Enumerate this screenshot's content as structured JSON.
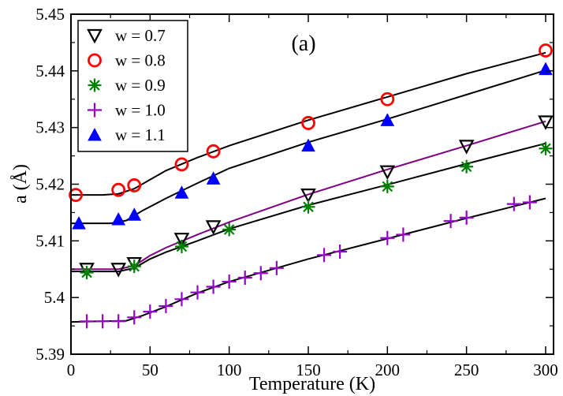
{
  "chart_data": {
    "type": "scatter",
    "xlabel": "Temperature (K)",
    "ylabel": "a (Å)",
    "xlim": [
      0,
      305
    ],
    "ylim": [
      5.39,
      5.45
    ],
    "xticks": [
      "0",
      "50",
      "100",
      "150",
      "200",
      "250",
      "300"
    ],
    "yticks": [
      "5.39",
      "5.4",
      "5.41",
      "5.42",
      "5.43",
      "5.44",
      "5.45"
    ],
    "annotation": "(a)",
    "legend_position": "top-left",
    "grid": false,
    "series": [
      {
        "name": "w = 0.7",
        "marker": "triangle-down",
        "color": "#000000",
        "filled": false,
        "points": [
          [
            10,
            5.405
          ],
          [
            30,
            5.405
          ],
          [
            40,
            5.406
          ],
          [
            70,
            5.4103
          ],
          [
            90,
            5.4125
          ],
          [
            150,
            5.4181
          ],
          [
            200,
            5.4222
          ],
          [
            250,
            5.4267
          ],
          [
            300,
            5.431
          ]
        ]
      },
      {
        "name": "w = 0.8",
        "marker": "circle",
        "color": "#ff0000",
        "filled": false,
        "points": [
          [
            3,
            5.4181
          ],
          [
            30,
            5.419
          ],
          [
            40,
            5.4198
          ],
          [
            70,
            5.4235
          ],
          [
            90,
            5.4258
          ],
          [
            150,
            5.4308
          ],
          [
            200,
            5.435
          ],
          [
            300,
            5.4436
          ]
        ]
      },
      {
        "name": "w = 0.9",
        "marker": "asterisk",
        "color": "#008000",
        "filled": false,
        "points": [
          [
            10,
            5.4044
          ],
          [
            40,
            5.4055
          ],
          [
            70,
            5.409
          ],
          [
            100,
            5.412
          ],
          [
            150,
            5.416
          ],
          [
            200,
            5.4196
          ],
          [
            250,
            5.4231
          ],
          [
            300,
            5.4263
          ]
        ]
      },
      {
        "name": "w = 1.0",
        "marker": "plus",
        "color": "#9900cc",
        "filled": false,
        "points": [
          [
            10,
            5.3958
          ],
          [
            20,
            5.3958
          ],
          [
            30,
            5.3958
          ],
          [
            40,
            5.3965
          ],
          [
            50,
            5.3975
          ],
          [
            60,
            5.3985
          ],
          [
            70,
            5.3997
          ],
          [
            80,
            5.4009
          ],
          [
            90,
            5.4019
          ],
          [
            100,
            5.4028
          ],
          [
            110,
            5.4035
          ],
          [
            120,
            5.4043
          ],
          [
            130,
            5.4052
          ],
          [
            160,
            5.4075
          ],
          [
            170,
            5.4081
          ],
          [
            200,
            5.4105
          ],
          [
            210,
            5.4111
          ],
          [
            240,
            5.4135
          ],
          [
            250,
            5.4141
          ],
          [
            280,
            5.4165
          ],
          [
            290,
            5.4168
          ]
        ]
      },
      {
        "name": "w = 1.1",
        "marker": "triangle-up",
        "color": "#0000ff",
        "filled": true,
        "points": [
          [
            5,
            5.4131
          ],
          [
            30,
            5.4138
          ],
          [
            40,
            5.4146
          ],
          [
            70,
            5.4185
          ],
          [
            90,
            5.421
          ],
          [
            150,
            5.4268
          ],
          [
            200,
            5.4313
          ],
          [
            300,
            5.4403
          ]
        ]
      }
    ],
    "fit_curves": [
      {
        "color": "#000000",
        "points": [
          [
            0,
            5.4181
          ],
          [
            20,
            5.4181
          ],
          [
            30,
            5.4183
          ],
          [
            40,
            5.4192
          ],
          [
            50,
            5.4208
          ],
          [
            60,
            5.4224
          ],
          [
            80,
            5.4247
          ],
          [
            100,
            5.4268
          ],
          [
            150,
            5.4313
          ],
          [
            200,
            5.4354
          ],
          [
            250,
            5.4395
          ],
          [
            300,
            5.4432
          ]
        ]
      },
      {
        "color": "#000000",
        "points": [
          [
            0,
            5.4131
          ],
          [
            25,
            5.4131
          ],
          [
            35,
            5.4136
          ],
          [
            45,
            5.4153
          ],
          [
            60,
            5.4175
          ],
          [
            80,
            5.4202
          ],
          [
            100,
            5.4228
          ],
          [
            150,
            5.4274
          ],
          [
            200,
            5.4315
          ],
          [
            250,
            5.4358
          ],
          [
            300,
            5.4401
          ]
        ]
      },
      {
        "color": "#800080",
        "points": [
          [
            0,
            5.405
          ],
          [
            30,
            5.405
          ],
          [
            40,
            5.4056
          ],
          [
            50,
            5.4074
          ],
          [
            60,
            5.4088
          ],
          [
            80,
            5.4111
          ],
          [
            100,
            5.4133
          ],
          [
            150,
            5.4182
          ],
          [
            200,
            5.4226
          ],
          [
            250,
            5.4268
          ],
          [
            300,
            5.4311
          ]
        ]
      },
      {
        "color": "#000000",
        "points": [
          [
            0,
            5.4046
          ],
          [
            30,
            5.4046
          ],
          [
            40,
            5.4052
          ],
          [
            50,
            5.4068
          ],
          [
            60,
            5.408
          ],
          [
            80,
            5.41
          ],
          [
            100,
            5.4121
          ],
          [
            150,
            5.4163
          ],
          [
            200,
            5.4199
          ],
          [
            250,
            5.4236
          ],
          [
            300,
            5.4272
          ]
        ]
      },
      {
        "color": "#000000",
        "points": [
          [
            0,
            5.3957
          ],
          [
            35,
            5.3959
          ],
          [
            45,
            5.3968
          ],
          [
            60,
            5.3984
          ],
          [
            80,
            5.4008
          ],
          [
            100,
            5.4028
          ],
          [
            150,
            5.4068
          ],
          [
            200,
            5.4104
          ],
          [
            250,
            5.414
          ],
          [
            300,
            5.4175
          ]
        ]
      }
    ]
  }
}
